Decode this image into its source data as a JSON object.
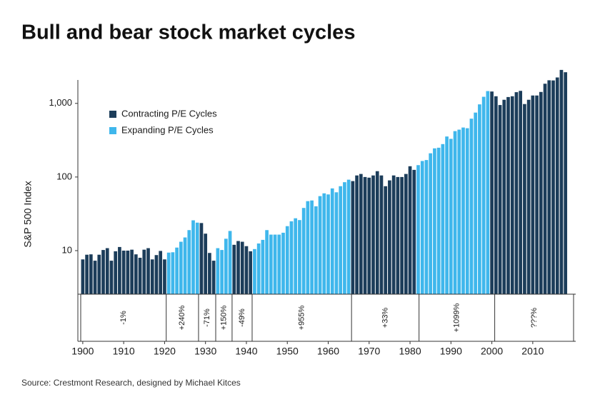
{
  "chart_data": {
    "type": "bar",
    "title": "Bull and bear stock market cycles",
    "y_label": "S&P 500 Index",
    "source": "Source: Crestmont Research, designed by Michael Kitces",
    "log_y": true,
    "grid": false,
    "legend": "upper left",
    "x": [
      1900,
      1901,
      1902,
      1903,
      1904,
      1905,
      1906,
      1907,
      1908,
      1909,
      1910,
      1911,
      1912,
      1913,
      1914,
      1915,
      1916,
      1917,
      1918,
      1919,
      1920,
      1921,
      1922,
      1923,
      1924,
      1925,
      1926,
      1927,
      1928,
      1929,
      1930,
      1931,
      1932,
      1933,
      1934,
      1935,
      1936,
      1937,
      1938,
      1939,
      1940,
      1941,
      1942,
      1943,
      1944,
      1945,
      1946,
      1947,
      1948,
      1949,
      1950,
      1951,
      1952,
      1953,
      1954,
      1955,
      1956,
      1957,
      1958,
      1959,
      1960,
      1961,
      1962,
      1963,
      1964,
      1965,
      1966,
      1967,
      1968,
      1969,
      1970,
      1971,
      1972,
      1973,
      1974,
      1975,
      1976,
      1977,
      1978,
      1979,
      1980,
      1981,
      1982,
      1983,
      1984,
      1985,
      1986,
      1987,
      1988,
      1989,
      1990,
      1991,
      1992,
      1993,
      1994,
      1995,
      1996,
      1997,
      1998,
      1999,
      2000,
      2001,
      2002,
      2003,
      2004,
      2005,
      2006,
      2007,
      2008,
      2009,
      2010,
      2011,
      2012,
      2013,
      2014,
      2015,
      2016,
      2017,
      2018
    ],
    "series": [
      {
        "name": "Contracting P/E Cycles",
        "color": "#1c3d5a",
        "values": [
          7.6,
          8.8,
          8.9,
          7.3,
          8.8,
          10.2,
          10.8,
          7.3,
          9.8,
          11.2,
          10,
          10,
          10.3,
          8.9,
          8,
          10.3,
          10.8,
          7.6,
          8.7,
          9.9,
          7.6,
          null,
          null,
          null,
          null,
          null,
          null,
          null,
          null,
          23.7,
          17,
          9.3,
          7.3,
          null,
          null,
          null,
          null,
          12,
          13.5,
          13.2,
          11.5,
          9.8,
          null,
          null,
          null,
          null,
          null,
          null,
          null,
          null,
          null,
          null,
          null,
          null,
          null,
          null,
          null,
          null,
          null,
          null,
          null,
          null,
          null,
          null,
          null,
          null,
          88,
          105,
          110,
          100,
          98,
          105,
          120,
          105,
          75,
          90,
          105,
          100,
          100,
          110,
          140,
          125,
          null,
          null,
          null,
          null,
          null,
          null,
          null,
          null,
          null,
          null,
          null,
          null,
          null,
          null,
          null,
          null,
          null,
          null,
          1450,
          1250,
          950,
          1120,
          1220,
          1250,
          1420,
          1480,
          980,
          1120,
          1280,
          1280,
          1430,
          1850,
          2060,
          2050,
          2250,
          2850,
          2650
        ]
      },
      {
        "name": "Expanding P/E Cycles",
        "color": "#3fb7ec",
        "values": [
          null,
          null,
          null,
          null,
          null,
          null,
          null,
          null,
          null,
          null,
          null,
          null,
          null,
          null,
          null,
          null,
          null,
          null,
          null,
          null,
          null,
          9.4,
          9.5,
          11,
          13.2,
          15.1,
          19,
          25.8,
          24,
          null,
          null,
          null,
          null,
          10.8,
          10.2,
          14.5,
          18.5,
          null,
          null,
          null,
          null,
          null,
          10.5,
          12.5,
          14,
          19,
          16.5,
          16.5,
          16.5,
          17.5,
          21.5,
          25,
          27.5,
          26,
          38,
          47,
          48,
          40,
          55,
          60,
          58,
          70,
          62,
          75,
          85,
          92,
          null,
          null,
          null,
          null,
          null,
          null,
          null,
          null,
          null,
          null,
          null,
          null,
          null,
          null,
          null,
          null,
          145,
          165,
          170,
          210,
          245,
          250,
          280,
          355,
          330,
          420,
          440,
          470,
          460,
          620,
          750,
          970,
          1230,
          1470,
          null,
          null,
          null,
          null,
          null,
          null,
          null,
          null,
          null,
          null,
          null,
          null,
          null,
          null,
          null,
          null,
          null,
          null,
          null
        ]
      }
    ],
    "cycles": [
      {
        "label": "-1%",
        "start": 1899.5,
        "end": 1920.4
      },
      {
        "label": "+240%",
        "start": 1920.4,
        "end": 1928.3
      },
      {
        "label": "-71%",
        "start": 1928.3,
        "end": 1932.5
      },
      {
        "label": "+150%",
        "start": 1932.5,
        "end": 1936.5
      },
      {
        "label": "-49%",
        "start": 1936.5,
        "end": 1941.4
      },
      {
        "label": "+955%",
        "start": 1941.4,
        "end": 1965.7
      },
      {
        "label": "+33%",
        "start": 1965.7,
        "end": 1982.2
      },
      {
        "label": "+1099%",
        "start": 1982.2,
        "end": 2000.7
      },
      {
        "label": "???%",
        "start": 2000.7,
        "end": 2020
      }
    ],
    "xlim": [
      1898.8,
      2020.5
    ],
    "xticks": [
      1900,
      1910,
      1920,
      1930,
      1940,
      1950,
      1960,
      1970,
      1980,
      1990,
      2000,
      2010
    ],
    "ylim": [
      2.56,
      3400
    ],
    "yticks": [
      10,
      100,
      {
        "value": 1000,
        "label": "1,000"
      }
    ]
  }
}
